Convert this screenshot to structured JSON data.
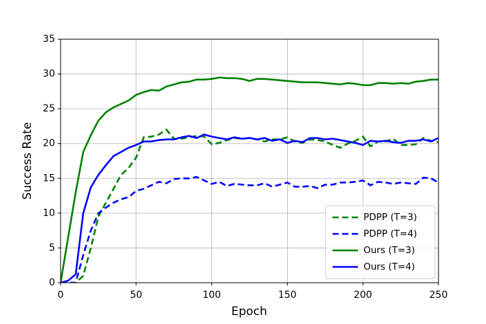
{
  "chart_data": {
    "type": "line",
    "xlabel": "Epoch",
    "ylabel": "Success Rate",
    "x": [
      0,
      5,
      10,
      15,
      20,
      25,
      30,
      35,
      40,
      45,
      50,
      55,
      60,
      65,
      70,
      75,
      80,
      85,
      90,
      95,
      100,
      105,
      110,
      115,
      120,
      125,
      130,
      135,
      140,
      145,
      150,
      155,
      160,
      165,
      170,
      175,
      180,
      185,
      190,
      195,
      200,
      205,
      210,
      215,
      220,
      225,
      230,
      235,
      240,
      245,
      250
    ],
    "xlim": [
      0,
      250
    ],
    "xticks": [
      0,
      50,
      100,
      150,
      200,
      250
    ],
    "ylim": [
      0,
      35
    ],
    "yticks": [
      0,
      5,
      10,
      15,
      20,
      25,
      30,
      35
    ],
    "grid": true,
    "legend": "lower right",
    "series": [
      {
        "name": "PDPP (T=3)",
        "color": "#008000",
        "linestyle": "dashed",
        "values": [
          0,
          0,
          0,
          1,
          5,
          9.5,
          11.5,
          13.5,
          15.5,
          16.5,
          18,
          20.9,
          21,
          21.3,
          22,
          20.7,
          20.7,
          20.9,
          21.1,
          21,
          19.9,
          20.1,
          20.5,
          20.8,
          20.7,
          20.8,
          20.6,
          20.3,
          20.6,
          20.6,
          20.9,
          20.3,
          20.1,
          20.6,
          20.5,
          20.3,
          19.8,
          19.4,
          20,
          20.4,
          21,
          19.6,
          20.3,
          20.3,
          20.7,
          19.8,
          19.8,
          19.9,
          20.8,
          20.4,
          20.2
        ]
      },
      {
        "name": "PDPP (T=4)",
        "color": "#0000ff",
        "linestyle": "dashed",
        "values": [
          0,
          0,
          0,
          4,
          7.5,
          10,
          10.8,
          11.5,
          12,
          12.3,
          13.2,
          13.5,
          14,
          14.5,
          14.3,
          14.9,
          15,
          15,
          15.2,
          14.7,
          14.2,
          14.5,
          13.9,
          14.2,
          14.1,
          14,
          14,
          14.3,
          13.8,
          14.1,
          14.4,
          13.8,
          13.8,
          13.9,
          13.6,
          14.1,
          14.1,
          14.4,
          14.4,
          14.5,
          14.7,
          14,
          14.5,
          14.4,
          14.2,
          14.4,
          14.3,
          14.2,
          15.1,
          15,
          14.4
        ]
      },
      {
        "name": "Ours (T=3)",
        "color": "#008000",
        "linestyle": "solid",
        "values": [
          0,
          6.5,
          13,
          18.8,
          21.2,
          23.3,
          24.5,
          25.2,
          25.7,
          26.2,
          27,
          27.4,
          27.7,
          27.6,
          28.2,
          28.5,
          28.8,
          28.9,
          29.2,
          29.2,
          29.3,
          29.5,
          29.4,
          29.4,
          29.3,
          29,
          29.3,
          29.3,
          29.2,
          29.1,
          29,
          28.9,
          28.8,
          28.8,
          28.8,
          28.7,
          28.6,
          28.5,
          28.7,
          28.6,
          28.4,
          28.4,
          28.7,
          28.7,
          28.6,
          28.7,
          28.6,
          28.9,
          29,
          29.2,
          29.2
        ]
      },
      {
        "name": "Ours (T=4)",
        "color": "#0000ff",
        "linestyle": "solid",
        "values": [
          0,
          0.3,
          1.2,
          10,
          13.7,
          15.5,
          16.9,
          18.2,
          18.8,
          19.4,
          19.8,
          20.3,
          20.3,
          20.5,
          20.6,
          20.6,
          20.9,
          21.1,
          20.8,
          21.3,
          21,
          20.8,
          20.6,
          20.9,
          20.7,
          20.8,
          20.6,
          20.8,
          20.4,
          20.6,
          20.1,
          20.4,
          20.2,
          20.8,
          20.8,
          20.6,
          20.7,
          20.5,
          20.3,
          20.1,
          19.8,
          20.4,
          20.3,
          20.4,
          20.2,
          20.1,
          20.4,
          20.4,
          20.6,
          20.3,
          20.8
        ]
      }
    ]
  }
}
